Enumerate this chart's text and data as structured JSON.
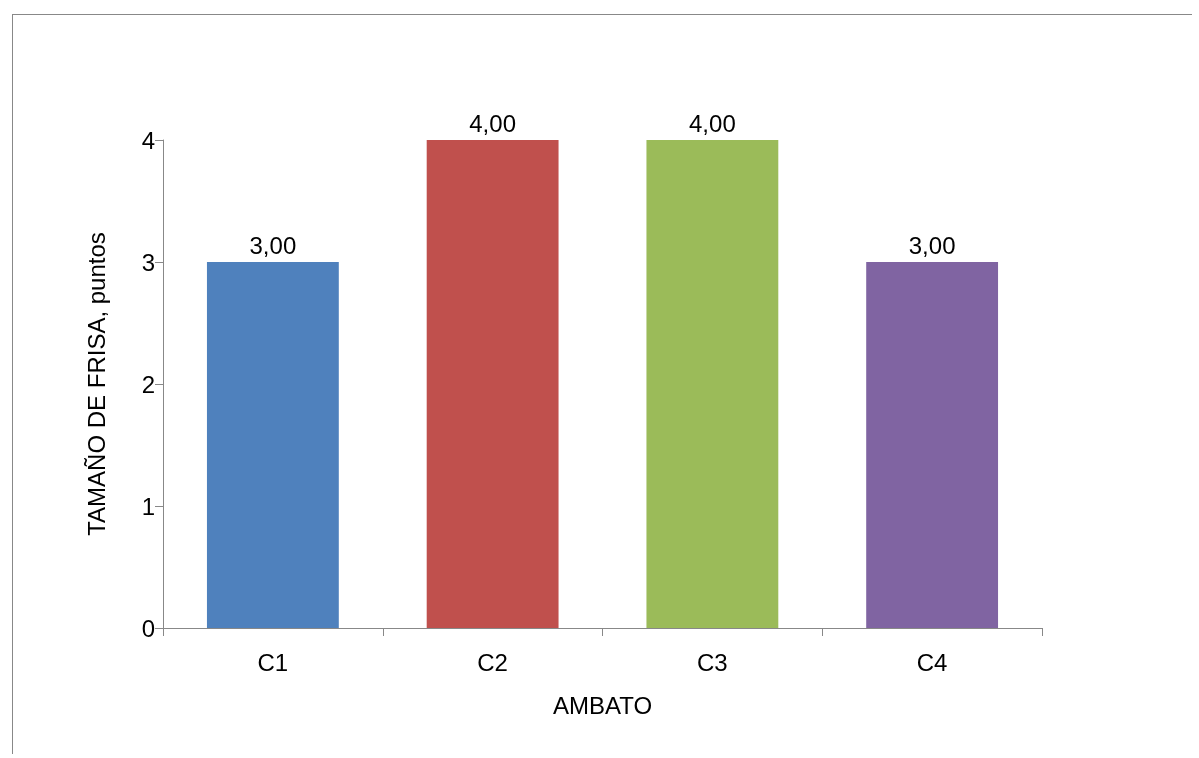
{
  "chart_data": {
    "type": "bar",
    "xlabel": "AMBATO",
    "ylabel": "TAMAÑO DE FRISA, puntos",
    "categories": [
      "C1",
      "C2",
      "C3",
      "C4"
    ],
    "values": [
      3,
      4,
      4,
      3
    ],
    "colors": [
      "#4f81bd",
      "#c0504d",
      "#9bbb59",
      "#8064a2"
    ],
    "value_labels": [
      "3,00",
      "4,00",
      "4,00",
      "3,00"
    ],
    "ylim": [
      0,
      4
    ],
    "yticks": [
      0,
      1,
      2,
      3,
      4
    ],
    "grid": false
  }
}
